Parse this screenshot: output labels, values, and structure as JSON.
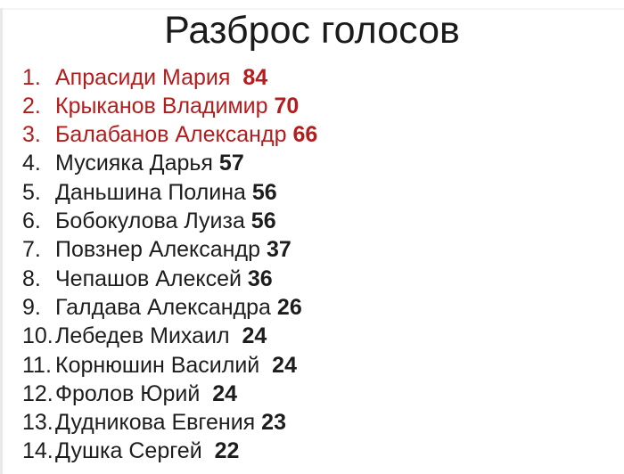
{
  "title": "Разброс голосов",
  "colors": {
    "highlight_red": "#b21d1d",
    "text_black": "#1d1d1d",
    "background": "#ffffff"
  },
  "list": {
    "items": [
      {
        "num": "1.",
        "name": "Апрасиди Мария",
        "sep": "  ",
        "votes": "84",
        "highlight": true
      },
      {
        "num": "2.",
        "name": "Крыканов Владимир",
        "sep": " ",
        "votes": "70",
        "highlight": true
      },
      {
        "num": "3.",
        "name": "Балабанов Александр",
        "sep": " ",
        "votes": "66",
        "highlight": true
      },
      {
        "num": "4.",
        "name": "Мусияка Дарья",
        "sep": " ",
        "votes": "57",
        "highlight": false
      },
      {
        "num": "5.",
        "name": "Даньшина Полина",
        "sep": " ",
        "votes": "56",
        "highlight": false
      },
      {
        "num": "6.",
        "name": "Бобокулова Луиза",
        "sep": " ",
        "votes": "56",
        "highlight": false
      },
      {
        "num": "7.",
        "name": "Повзнер Александр",
        "sep": " ",
        "votes": "37",
        "highlight": false
      },
      {
        "num": "8.",
        "name": "Чепашов Алексей",
        "sep": " ",
        "votes": "36",
        "highlight": false
      },
      {
        "num": "9.",
        "name": "Галдава Александра",
        "sep": " ",
        "votes": "26",
        "highlight": false
      },
      {
        "num": "10.",
        "name": "Лебедев Михаил",
        "sep": "  ",
        "votes": "24",
        "highlight": false
      },
      {
        "num": "11.",
        "name": "Корнюшин Василий",
        "sep": "  ",
        "votes": "24",
        "highlight": false
      },
      {
        "num": "12.",
        "name": "Фролов Юрий",
        "sep": "  ",
        "votes": "24",
        "highlight": false
      },
      {
        "num": "13.",
        "name": "Дудникова Евгения",
        "sep": " ",
        "votes": "23",
        "highlight": false
      },
      {
        "num": "14.",
        "name": "Душка Сергей",
        "sep": "  ",
        "votes": "22",
        "highlight": false
      }
    ]
  }
}
